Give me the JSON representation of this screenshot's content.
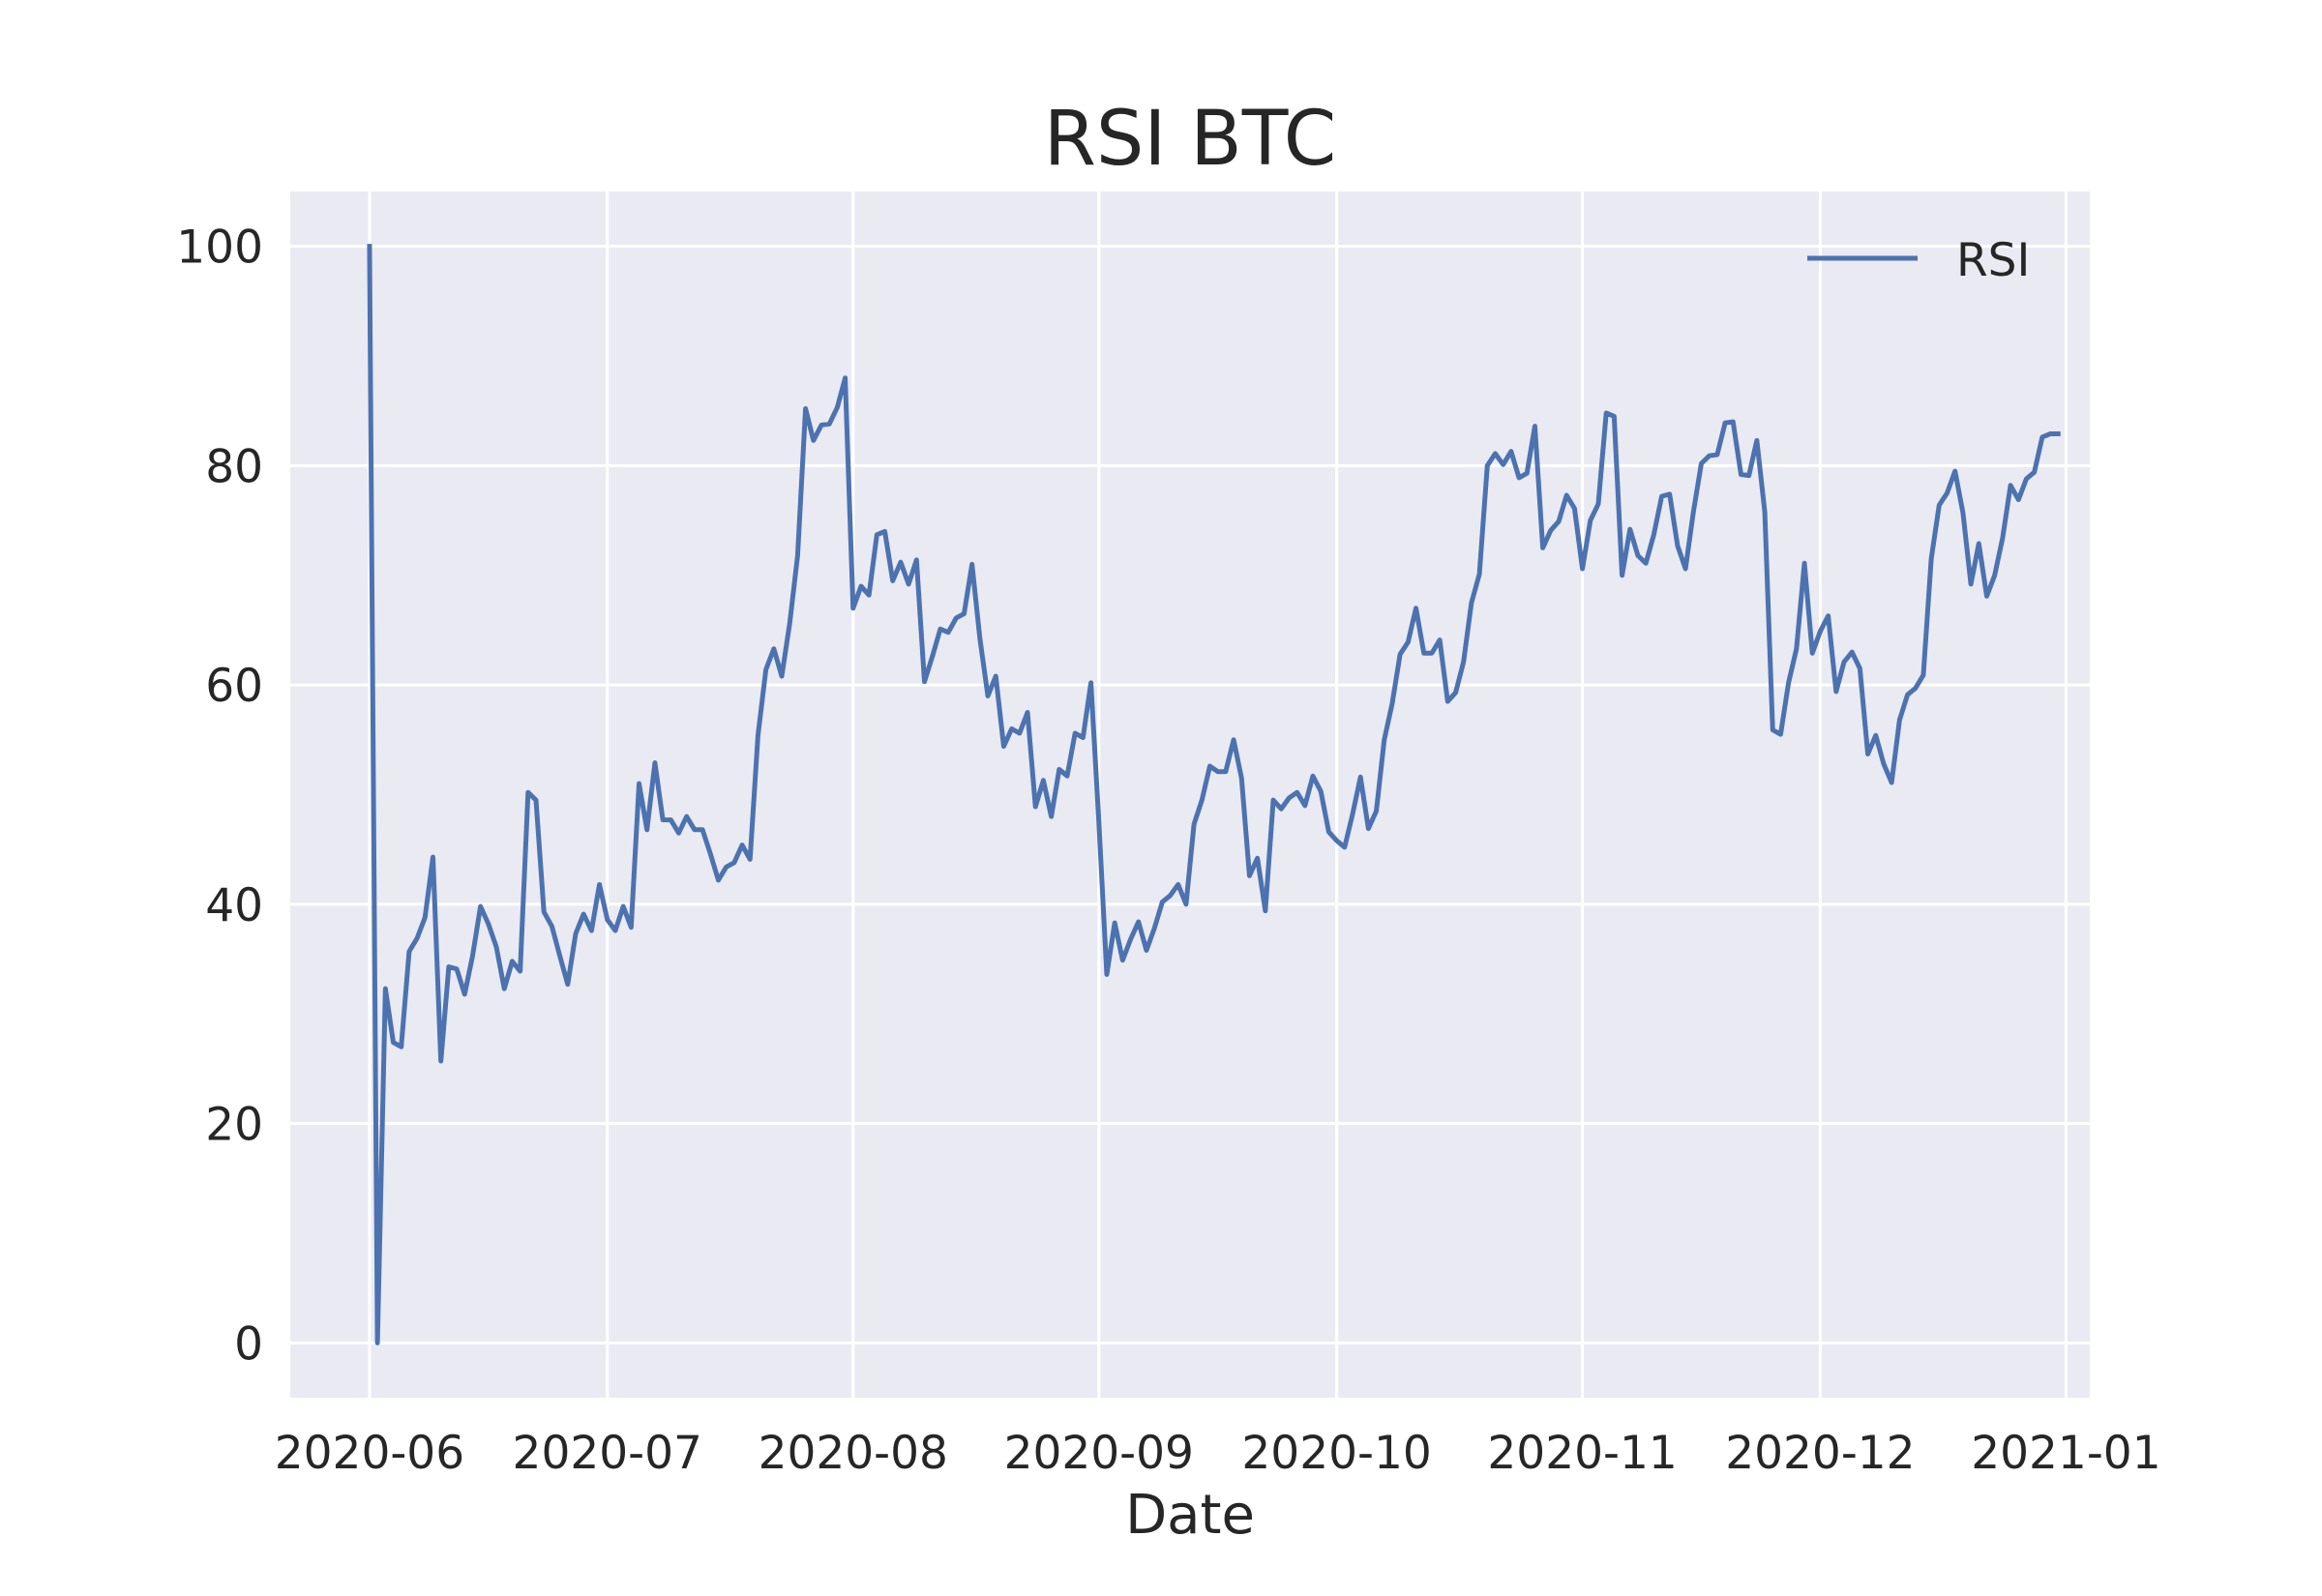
{
  "chart_data": {
    "type": "line",
    "title": "RSI BTC",
    "xlabel": "Date",
    "ylabel": "",
    "xlim": [
      "2020-05-22",
      "2021-01-04"
    ],
    "ylim": [
      -5,
      105
    ],
    "x_ticks": [
      "2020-06",
      "2020-07",
      "2020-08",
      "2020-09",
      "2020-10",
      "2020-11",
      "2020-12",
      "2021-01"
    ],
    "y_ticks": [
      0,
      20,
      40,
      60,
      80,
      100
    ],
    "grid": true,
    "legend": {
      "position": "top-right",
      "entries": [
        "RSI"
      ]
    },
    "series": [
      {
        "name": "RSI",
        "color": "#4c72b0",
        "x": [
          "2020-06-01",
          "2020-06-02",
          "2020-06-03",
          "2020-06-04",
          "2020-06-05",
          "2020-06-06",
          "2020-06-07",
          "2020-06-08",
          "2020-06-09",
          "2020-06-10",
          "2020-06-11",
          "2020-06-12",
          "2020-06-13",
          "2020-06-14",
          "2020-06-15",
          "2020-06-16",
          "2020-06-17",
          "2020-06-18",
          "2020-06-19",
          "2020-06-20",
          "2020-06-21",
          "2020-06-22",
          "2020-06-23",
          "2020-06-24",
          "2020-06-25",
          "2020-06-26",
          "2020-06-27",
          "2020-06-28",
          "2020-06-29",
          "2020-06-30",
          "2020-07-01",
          "2020-07-02",
          "2020-07-03",
          "2020-07-04",
          "2020-07-05",
          "2020-07-06",
          "2020-07-07",
          "2020-07-08",
          "2020-07-09",
          "2020-07-10",
          "2020-07-11",
          "2020-07-12",
          "2020-07-13",
          "2020-07-14",
          "2020-07-15",
          "2020-07-16",
          "2020-07-17",
          "2020-07-18",
          "2020-07-19",
          "2020-07-20",
          "2020-07-21",
          "2020-07-22",
          "2020-07-23",
          "2020-07-24",
          "2020-07-25",
          "2020-07-26",
          "2020-07-27",
          "2020-07-28",
          "2020-07-29",
          "2020-07-30",
          "2020-07-31",
          "2020-08-01",
          "2020-08-02",
          "2020-08-03",
          "2020-08-04",
          "2020-08-05",
          "2020-08-06",
          "2020-08-07",
          "2020-08-08",
          "2020-08-09",
          "2020-08-10",
          "2020-08-11",
          "2020-08-12",
          "2020-08-13",
          "2020-08-14",
          "2020-08-15",
          "2020-08-16",
          "2020-08-17",
          "2020-08-18",
          "2020-08-19",
          "2020-08-20",
          "2020-08-21",
          "2020-08-22",
          "2020-08-23",
          "2020-08-24",
          "2020-08-25",
          "2020-08-26",
          "2020-08-27",
          "2020-08-28",
          "2020-08-29",
          "2020-08-30",
          "2020-08-31",
          "2020-09-01",
          "2020-09-02",
          "2020-09-03",
          "2020-09-04",
          "2020-09-05",
          "2020-09-06",
          "2020-09-07",
          "2020-09-08",
          "2020-09-09",
          "2020-09-10",
          "2020-09-11",
          "2020-09-12",
          "2020-09-13",
          "2020-09-14",
          "2020-09-15",
          "2020-09-16",
          "2020-09-17",
          "2020-09-18",
          "2020-09-19",
          "2020-09-20",
          "2020-09-21",
          "2020-09-22",
          "2020-09-23",
          "2020-09-24",
          "2020-09-25",
          "2020-09-26",
          "2020-09-27",
          "2020-09-28",
          "2020-09-29",
          "2020-09-30",
          "2020-10-01",
          "2020-10-02",
          "2020-10-03",
          "2020-10-04",
          "2020-10-05",
          "2020-10-06",
          "2020-10-07",
          "2020-10-08",
          "2020-10-09",
          "2020-10-10",
          "2020-10-11",
          "2020-10-12",
          "2020-10-13",
          "2020-10-14",
          "2020-10-15",
          "2020-10-16",
          "2020-10-17",
          "2020-10-18",
          "2020-10-19",
          "2020-10-20",
          "2020-10-21",
          "2020-10-22",
          "2020-10-23",
          "2020-10-24",
          "2020-10-25",
          "2020-10-26",
          "2020-10-27",
          "2020-10-28",
          "2020-10-29",
          "2020-10-30",
          "2020-10-31",
          "2020-11-01",
          "2020-11-02",
          "2020-11-03",
          "2020-11-04",
          "2020-11-05",
          "2020-11-06",
          "2020-11-07",
          "2020-11-08",
          "2020-11-09",
          "2020-11-10",
          "2020-11-11",
          "2020-11-12",
          "2020-11-13",
          "2020-11-14",
          "2020-11-15",
          "2020-11-16",
          "2020-11-17",
          "2020-11-18",
          "2020-11-19",
          "2020-11-20",
          "2020-11-21",
          "2020-11-22",
          "2020-11-23",
          "2020-11-24",
          "2020-11-25",
          "2020-11-26",
          "2020-11-27",
          "2020-11-28",
          "2020-11-29",
          "2020-11-30",
          "2020-12-01",
          "2020-12-02",
          "2020-12-03",
          "2020-12-04",
          "2020-12-05",
          "2020-12-06",
          "2020-12-07",
          "2020-12-08",
          "2020-12-09",
          "2020-12-10",
          "2020-12-11",
          "2020-12-12",
          "2020-12-13",
          "2020-12-14",
          "2020-12-15",
          "2020-12-16",
          "2020-12-17",
          "2020-12-18",
          "2020-12-19",
          "2020-12-20",
          "2020-12-21",
          "2020-12-22",
          "2020-12-23",
          "2020-12-24",
          "2020-12-25",
          "2020-12-26",
          "2020-12-27",
          "2020-12-28",
          "2020-12-29",
          "2020-12-30",
          "2020-12-31"
        ],
        "y": [
          100,
          0,
          32.3,
          27.4,
          27.0,
          35.7,
          36.9,
          38.8,
          44.3,
          25.7,
          34.3,
          34.1,
          31.8,
          35.3,
          39.8,
          38.2,
          36.1,
          32.3,
          34.8,
          33.9,
          50.2,
          49.5,
          39.3,
          38.0,
          35.3,
          32.7,
          37.3,
          39.1,
          37.6,
          41.8,
          38.6,
          37.6,
          39.8,
          37.9,
          51.0,
          46.8,
          52.9,
          47.7,
          47.7,
          46.5,
          48.0,
          46.8,
          46.8,
          44.6,
          42.2,
          43.4,
          43.8,
          45.4,
          44.1,
          55.4,
          61.4,
          63.3,
          60.8,
          65.6,
          71.8,
          85.2,
          82.3,
          83.7,
          83.8,
          85.3,
          88.0,
          67.0,
          69.0,
          68.2,
          73.7,
          74.0,
          69.5,
          71.2,
          69.2,
          71.4,
          60.3,
          62.6,
          65.1,
          64.8,
          66.1,
          66.5,
          71.0,
          64.2,
          59.0,
          60.8,
          54.4,
          56.0,
          55.6,
          57.5,
          48.9,
          51.3,
          48.0,
          52.3,
          51.7,
          55.6,
          55.2,
          60.2,
          47.5,
          33.6,
          38.3,
          34.9,
          36.8,
          38.4,
          35.8,
          37.8,
          40.2,
          40.8,
          41.8,
          40.0,
          47.3,
          49.5,
          52.6,
          52.1,
          52.1,
          55.0,
          51.5,
          42.6,
          44.2,
          39.4,
          49.5,
          48.7,
          49.7,
          50.2,
          49.0,
          51.7,
          50.3,
          46.6,
          45.8,
          45.2,
          48.2,
          51.6,
          46.9,
          48.5,
          55.0,
          58.3,
          62.8,
          63.9,
          67.0,
          62.9,
          62.9,
          64.1,
          58.5,
          59.3,
          62.1,
          67.5,
          70.1,
          80.0,
          81.1,
          80.1,
          81.3,
          78.9,
          79.3,
          83.6,
          72.5,
          74.1,
          74.9,
          77.3,
          76.1,
          70.6,
          75.0,
          76.5,
          84.8,
          84.5,
          70.0,
          74.2,
          71.8,
          71.1,
          73.7,
          77.2,
          77.4,
          72.7,
          70.6,
          75.8,
          80.2,
          80.9,
          81.0,
          83.9,
          84.0,
          79.2,
          79.1,
          82.3,
          75.8,
          55.9,
          55.5,
          60.2,
          63.3,
          71.1,
          62.9,
          64.9,
          66.3,
          59.4,
          62.1,
          63.0,
          61.5,
          53.7,
          55.4,
          52.8,
          51.1,
          56.8,
          59.1,
          59.7,
          60.9,
          71.5,
          76.4,
          77.5,
          79.5,
          75.7,
          69.2,
          72.9,
          68.1,
          70.0,
          73.4,
          78.2,
          76.9,
          78.8,
          79.4,
          82.6,
          82.9,
          82.9
        ]
      }
    ]
  }
}
